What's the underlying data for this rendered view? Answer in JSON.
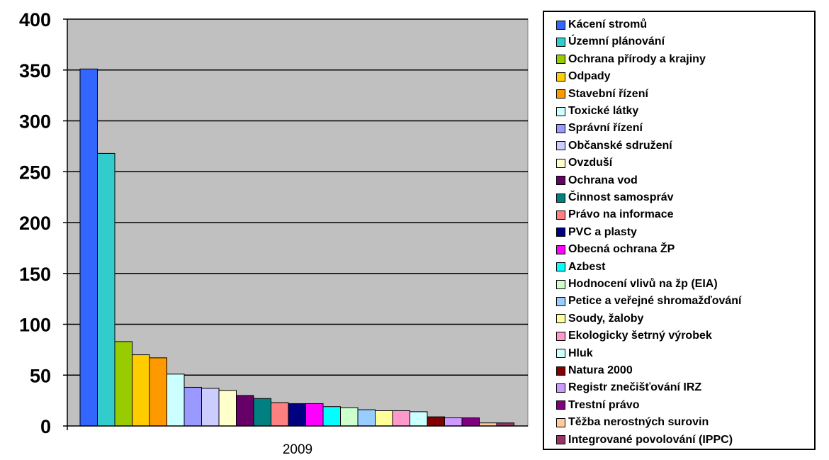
{
  "chart_data": {
    "type": "bar",
    "xlabel": "",
    "ylabel": "",
    "title": "",
    "categories": [
      "2009"
    ],
    "ylim": [
      0,
      400
    ],
    "yticks": [
      0,
      50,
      100,
      150,
      200,
      250,
      300,
      350,
      400
    ],
    "grid": true,
    "legend_position": "right",
    "plot_background": "#c0c0c0",
    "series": [
      {
        "name": "Kácení stromů",
        "value": 351,
        "color": "#3366ff"
      },
      {
        "name": "Územní plánování",
        "value": 268,
        "color": "#33cccc"
      },
      {
        "name": "Ochrana přírody a krajiny",
        "value": 83,
        "color": "#99cc00"
      },
      {
        "name": "Odpady",
        "value": 70,
        "color": "#ffcc00"
      },
      {
        "name": "Stavební řízení",
        "value": 67,
        "color": "#ff9900"
      },
      {
        "name": "Toxické látky",
        "value": 51,
        "color": "#ccffff"
      },
      {
        "name": "Správní řízení",
        "value": 38,
        "color": "#9999ff"
      },
      {
        "name": "Občanské sdružení",
        "value": 37,
        "color": "#ccccff"
      },
      {
        "name": "Ovzduší",
        "value": 35,
        "color": "#ffffcc"
      },
      {
        "name": "Ochrana vod",
        "value": 30,
        "color": "#660066"
      },
      {
        "name": "Činnost samospráv",
        "value": 27,
        "color": "#008080"
      },
      {
        "name": "Právo na informace",
        "value": 23,
        "color": "#ff8080"
      },
      {
        "name": "PVC a plasty",
        "value": 22,
        "color": "#000080"
      },
      {
        "name": "Obecná ochrana ŽP",
        "value": 22,
        "color": "#ff00ff"
      },
      {
        "name": "Azbest",
        "value": 19,
        "color": "#00ffff"
      },
      {
        "name": "Hodnocení vlivů na žp (EIA)",
        "value": 18,
        "color": "#ccffcc"
      },
      {
        "name": "Petice a veřejné shromažďování",
        "value": 16,
        "color": "#99ccff"
      },
      {
        "name": "Soudy, žaloby",
        "value": 15,
        "color": "#ffff99"
      },
      {
        "name": "Ekologicky šetrný výrobek",
        "value": 15,
        "color": "#ff99cc"
      },
      {
        "name": "Hluk",
        "value": 14,
        "color": "#ccffff"
      },
      {
        "name": "Natura 2000",
        "value": 9,
        "color": "#800000"
      },
      {
        "name": "Registr znečišťování IRZ",
        "value": 8,
        "color": "#cc99ff"
      },
      {
        "name": "Trestní právo",
        "value": 8,
        "color": "#800080"
      },
      {
        "name": "Těžba nerostných surovin",
        "value": 3,
        "color": "#ffcc99"
      },
      {
        "name": "Integrované povolování (IPPC)",
        "value": 3,
        "color": "#993366"
      }
    ]
  }
}
